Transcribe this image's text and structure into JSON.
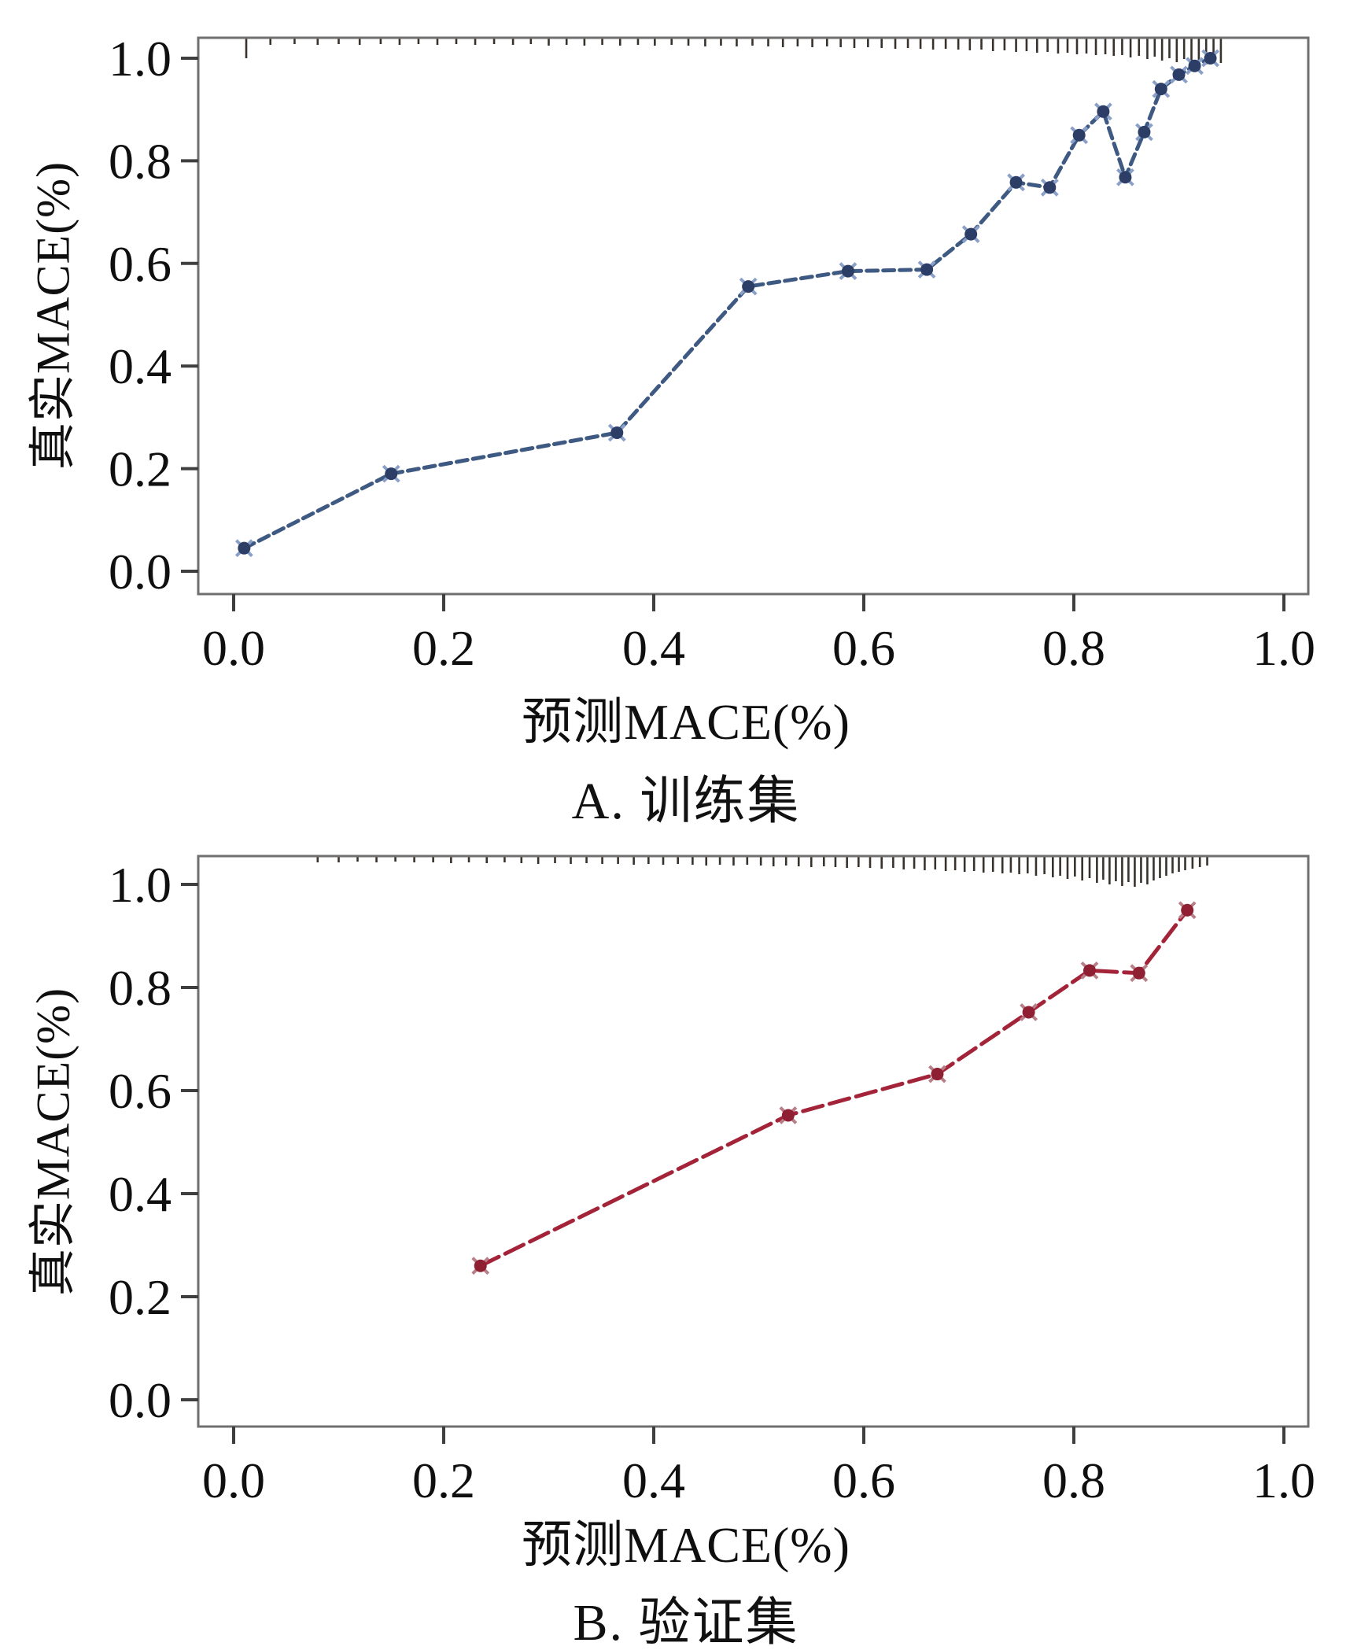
{
  "figure": {
    "background": "#ffffff",
    "frame_color": "#6f6f6f",
    "tick_color": "#3f3f3f",
    "rug_color": "#38322c",
    "text_color": "#0f0f0f"
  },
  "chart_data": [
    {
      "id": "train",
      "type": "line",
      "caption": "A. 训练集",
      "xlabel": "预测MACE(%)",
      "ylabel": "真实MACE(%)",
      "xlim": [
        -0.035,
        1.025
      ],
      "ylim": [
        -0.045,
        1.05
      ],
      "grid": false,
      "legend": "none",
      "x_tick_values": [
        0,
        0.2,
        0.4,
        0.6,
        0.8,
        1.0
      ],
      "x_tick_labels": [
        "0.0",
        "0.2",
        "0.4",
        "0.6",
        "0.8",
        "1.0"
      ],
      "y_tick_values": [
        0,
        0.2,
        0.4,
        0.6,
        0.8,
        1.0
      ],
      "y_tick_labels": [
        "0.0",
        "0.2",
        "0.4",
        "0.6",
        "0.8",
        "1.0"
      ],
      "line_color": "#3f5a82",
      "line_dash": "14 7",
      "marker_color": "#2c3d66",
      "marker_halo": "#8aa0c8",
      "points": [
        [
          0.01,
          0.045
        ],
        [
          0.15,
          0.19
        ],
        [
          0.365,
          0.27
        ],
        [
          0.49,
          0.555
        ],
        [
          0.585,
          0.585
        ],
        [
          0.66,
          0.588
        ],
        [
          0.702,
          0.657
        ],
        [
          0.745,
          0.758
        ],
        [
          0.777,
          0.748
        ],
        [
          0.805,
          0.85
        ],
        [
          0.828,
          0.896
        ],
        [
          0.849,
          0.768
        ],
        [
          0.867,
          0.856
        ],
        [
          0.883,
          0.94
        ],
        [
          0.9,
          0.968
        ],
        [
          0.915,
          0.985
        ],
        [
          0.93,
          1.0
        ]
      ],
      "rug_ticks": [
        [
          0.012,
          26
        ],
        [
          0.035,
          9
        ],
        [
          0.058,
          8
        ],
        [
          0.08,
          9
        ],
        [
          0.1,
          8
        ],
        [
          0.12,
          9
        ],
        [
          0.14,
          8
        ],
        [
          0.158,
          9
        ],
        [
          0.176,
          8
        ],
        [
          0.194,
          9
        ],
        [
          0.212,
          8
        ],
        [
          0.23,
          9
        ],
        [
          0.248,
          8
        ],
        [
          0.266,
          9
        ],
        [
          0.283,
          8
        ],
        [
          0.3,
          10
        ],
        [
          0.317,
          9
        ],
        [
          0.334,
          10
        ],
        [
          0.351,
          9
        ],
        [
          0.368,
          10
        ],
        [
          0.385,
          9
        ],
        [
          0.401,
          10
        ],
        [
          0.417,
          9
        ],
        [
          0.433,
          10
        ],
        [
          0.449,
          11
        ],
        [
          0.464,
          10
        ],
        [
          0.479,
          11
        ],
        [
          0.494,
          10
        ],
        [
          0.509,
          11
        ],
        [
          0.523,
          12
        ],
        [
          0.537,
          11
        ],
        [
          0.551,
          12
        ],
        [
          0.565,
          11
        ],
        [
          0.578,
          12
        ],
        [
          0.591,
          13
        ],
        [
          0.604,
          12
        ],
        [
          0.617,
          13
        ],
        [
          0.63,
          14
        ],
        [
          0.642,
          13
        ],
        [
          0.654,
          14
        ],
        [
          0.666,
          15
        ],
        [
          0.678,
          14
        ],
        [
          0.69,
          15
        ],
        [
          0.701,
          16
        ],
        [
          0.712,
          15
        ],
        [
          0.723,
          17
        ],
        [
          0.734,
          16
        ],
        [
          0.745,
          18
        ],
        [
          0.755,
          17
        ],
        [
          0.765,
          19
        ],
        [
          0.775,
          18
        ],
        [
          0.785,
          20
        ],
        [
          0.794,
          19
        ],
        [
          0.803,
          21
        ],
        [
          0.812,
          20
        ],
        [
          0.821,
          22
        ],
        [
          0.83,
          21
        ],
        [
          0.838,
          23
        ],
        [
          0.846,
          22
        ],
        [
          0.854,
          25
        ],
        [
          0.862,
          23
        ],
        [
          0.87,
          27
        ],
        [
          0.877,
          24
        ],
        [
          0.884,
          29
        ],
        [
          0.891,
          26
        ],
        [
          0.898,
          31
        ],
        [
          0.905,
          27
        ],
        [
          0.912,
          33
        ],
        [
          0.919,
          29
        ],
        [
          0.926,
          34
        ],
        [
          0.933,
          30
        ],
        [
          0.94,
          32
        ]
      ]
    },
    {
      "id": "validation",
      "type": "line",
      "caption": "B. 验证集",
      "xlabel": "预测MACE(%)",
      "ylabel": "真实MACE(%)",
      "xlim": [
        -0.035,
        1.025
      ],
      "ylim": [
        -0.05,
        1.055
      ],
      "grid": false,
      "legend": "none",
      "x_tick_values": [
        0,
        0.2,
        0.4,
        0.6,
        0.8,
        1.0
      ],
      "x_tick_labels": [
        "0.0",
        "0.2",
        "0.4",
        "0.6",
        "0.8",
        "1.0"
      ],
      "y_tick_values": [
        0,
        0.2,
        0.4,
        0.6,
        0.8,
        1.0
      ],
      "y_tick_labels": [
        "0.0",
        "0.2",
        "0.4",
        "0.6",
        "0.8",
        "1.0"
      ],
      "line_color": "#a32339",
      "line_dash": "26 9",
      "marker_color": "#8f1f33",
      "marker_halo": "#b97f89",
      "points": [
        [
          0.235,
          0.26
        ],
        [
          0.528,
          0.552
        ],
        [
          0.67,
          0.632
        ],
        [
          0.757,
          0.752
        ],
        [
          0.815,
          0.833
        ],
        [
          0.862,
          0.828
        ],
        [
          0.908,
          0.95
        ]
      ],
      "rug_ticks": [
        [
          0.08,
          8
        ],
        [
          0.1,
          8
        ],
        [
          0.118,
          7
        ],
        [
          0.136,
          8
        ],
        [
          0.154,
          7
        ],
        [
          0.172,
          8
        ],
        [
          0.19,
          8
        ],
        [
          0.207,
          9
        ],
        [
          0.224,
          8
        ],
        [
          0.241,
          9
        ],
        [
          0.258,
          8
        ],
        [
          0.274,
          9
        ],
        [
          0.29,
          10
        ],
        [
          0.306,
          9
        ],
        [
          0.321,
          10
        ],
        [
          0.336,
          9
        ],
        [
          0.351,
          10
        ],
        [
          0.366,
          10
        ],
        [
          0.381,
          11
        ],
        [
          0.395,
          10
        ],
        [
          0.409,
          11
        ],
        [
          0.423,
          10
        ],
        [
          0.437,
          11
        ],
        [
          0.45,
          12
        ],
        [
          0.463,
          11
        ],
        [
          0.476,
          12
        ],
        [
          0.489,
          11
        ],
        [
          0.502,
          12
        ],
        [
          0.514,
          13
        ],
        [
          0.526,
          12
        ],
        [
          0.538,
          13
        ],
        [
          0.55,
          14
        ],
        [
          0.562,
          13
        ],
        [
          0.573,
          14
        ],
        [
          0.584,
          15
        ],
        [
          0.595,
          14
        ],
        [
          0.606,
          15
        ],
        [
          0.617,
          16
        ],
        [
          0.628,
          15
        ],
        [
          0.638,
          17
        ],
        [
          0.648,
          16
        ],
        [
          0.658,
          18
        ],
        [
          0.668,
          17
        ],
        [
          0.678,
          19
        ],
        [
          0.687,
          18
        ],
        [
          0.696,
          20
        ],
        [
          0.705,
          19
        ],
        [
          0.714,
          21
        ],
        [
          0.723,
          20
        ],
        [
          0.732,
          22
        ],
        [
          0.74,
          21
        ],
        [
          0.748,
          23
        ],
        [
          0.756,
          22
        ],
        [
          0.764,
          25
        ],
        [
          0.772,
          23
        ],
        [
          0.78,
          27
        ],
        [
          0.787,
          25
        ],
        [
          0.794,
          29
        ],
        [
          0.801,
          26
        ],
        [
          0.808,
          31
        ],
        [
          0.815,
          28
        ],
        [
          0.822,
          34
        ],
        [
          0.828,
          30
        ],
        [
          0.834,
          36
        ],
        [
          0.84,
          32
        ],
        [
          0.846,
          38
        ],
        [
          0.852,
          33
        ],
        [
          0.858,
          39
        ],
        [
          0.864,
          34
        ],
        [
          0.87,
          36
        ],
        [
          0.876,
          31
        ],
        [
          0.882,
          28
        ],
        [
          0.888,
          25
        ],
        [
          0.894,
          22
        ],
        [
          0.9,
          20
        ],
        [
          0.906,
          18
        ],
        [
          0.913,
          16
        ],
        [
          0.92,
          14
        ],
        [
          0.927,
          12
        ]
      ]
    }
  ]
}
